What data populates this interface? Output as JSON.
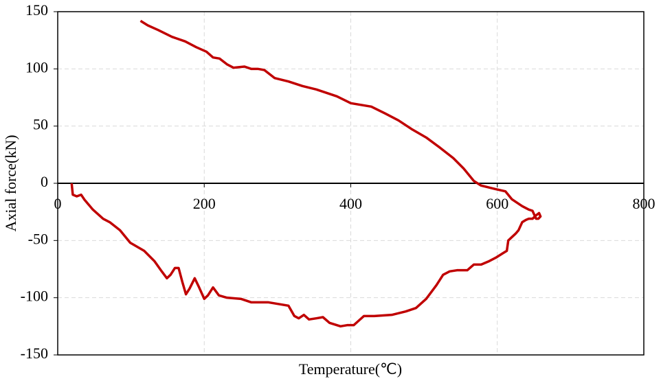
{
  "chart_data": {
    "type": "line",
    "x_label": "Temperature(℃)",
    "y_label": "Axial force(kN)",
    "xlim": [
      0,
      800
    ],
    "xticks": [
      0,
      200,
      400,
      600,
      800
    ],
    "ylim": [
      -150,
      150
    ],
    "yticks": [
      -150,
      -100,
      -50,
      0,
      50,
      100,
      150
    ],
    "grid": true,
    "series": [
      {
        "color": "#c00000",
        "x": [
          19,
          20.6,
          26,
          32,
          36.6,
          48,
          62,
          71,
          85,
          99,
          118,
          132,
          142,
          149,
          154,
          160,
          165,
          170,
          175,
          180,
          187,
          193,
          200,
          205,
          212,
          220,
          231,
          250,
          264,
          287,
          306,
          315,
          323,
          329,
          336,
          343,
          353,
          362,
          371,
          386,
          395,
          404,
          411,
          418,
          432,
          456,
          475,
          489,
          503,
          517,
          526,
          535,
          545,
          559,
          568,
          578,
          589,
          598,
          608,
          613,
          615,
          620,
          625,
          629,
          634,
          639,
          643,
          648,
          653,
          657,
          659,
          656,
          653,
          648,
          643,
          634,
          620,
          611,
          597,
          578,
          568,
          554,
          540,
          522,
          503,
          484,
          465,
          447,
          428,
          400,
          381,
          353,
          334,
          315,
          296,
          282,
          273,
          264,
          255,
          240,
          231,
          221,
          212,
          203,
          189,
          174,
          156,
          137,
          123,
          113
        ],
        "values": [
          0,
          -10,
          -11.4,
          -10,
          -14.4,
          -23,
          -31,
          -34,
          -41,
          -52,
          -59,
          -68,
          -77,
          -83,
          -80,
          -74,
          -74,
          -86,
          -97,
          -92,
          -83,
          -91,
          -101,
          -98,
          -91,
          -98,
          -100,
          -101,
          -104,
          -104,
          -106,
          -107,
          -116,
          -118,
          -115,
          -119,
          -118,
          -117,
          -122,
          -125,
          -124,
          -124,
          -120,
          -116,
          -116,
          -115,
          -112,
          -109,
          -101,
          -89,
          -80,
          -77,
          -76,
          -76,
          -71,
          -71,
          -68,
          -65,
          -61,
          -59,
          -50,
          -47,
          -44,
          -41,
          -34,
          -32,
          -31,
          -31,
          -28,
          -26,
          -29,
          -31,
          -31,
          -24,
          -23,
          -20,
          -14,
          -7,
          -5,
          -2,
          2,
          13,
          22,
          31,
          40,
          47,
          55,
          61,
          67,
          70,
          76,
          82,
          85,
          89,
          92,
          99,
          100,
          100,
          102,
          101,
          104,
          109,
          110,
          115,
          119,
          124,
          128,
          134,
          138,
          142
        ]
      }
    ]
  }
}
